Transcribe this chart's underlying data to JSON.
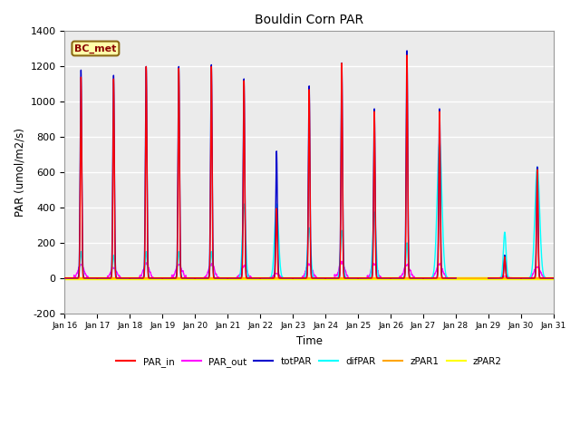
{
  "title": "Bouldin Corn PAR",
  "ylabel": "PAR (umol/m2/s)",
  "xlabel": "Time",
  "annotation": "BC_met",
  "ylim": [
    -200,
    1400
  ],
  "yticks": [
    -200,
    0,
    200,
    400,
    600,
    800,
    1000,
    1200,
    1400
  ],
  "series_colors": {
    "PAR_in": "#ff0000",
    "PAR_out": "#ff00ff",
    "totPAR": "#0000cc",
    "difPAR": "#00ffff",
    "zPAR1": "#ffa500",
    "zPAR2": "#ffff00"
  },
  "bg_color": "#ebebeb",
  "grid_color": "#ffffff",
  "days": [
    16,
    17,
    18,
    19,
    20,
    21,
    22,
    23,
    24,
    25,
    26,
    27,
    28,
    29,
    30,
    31
  ],
  "day_peaks_totPAR": [
    1180,
    1150,
    1200,
    1200,
    1210,
    1130,
    720,
    1090,
    1220,
    960,
    1290,
    960,
    0,
    130,
    630,
    0
  ],
  "day_peaks_PAR_in": [
    1140,
    1130,
    1200,
    1190,
    1200,
    1120,
    395,
    1070,
    1220,
    945,
    1265,
    945,
    0,
    120,
    615,
    0
  ],
  "day_peaks_difPAR": [
    150,
    130,
    150,
    150,
    150,
    420,
    420,
    285,
    270,
    375,
    200,
    770,
    0,
    260,
    630,
    0
  ],
  "day_peaks_PAR_out": [
    75,
    60,
    80,
    75,
    80,
    65,
    25,
    80,
    90,
    80,
    75,
    80,
    0,
    10,
    65,
    0
  ],
  "day_width_totPAR": [
    0.06,
    0.06,
    0.06,
    0.06,
    0.06,
    0.06,
    0.06,
    0.06,
    0.06,
    0.06,
    0.06,
    0.06,
    0.0,
    0.06,
    0.06,
    0.0
  ],
  "day_width_difPAR": [
    0.08,
    0.08,
    0.08,
    0.08,
    0.08,
    0.12,
    0.15,
    0.12,
    0.1,
    0.12,
    0.08,
    0.18,
    0.0,
    0.1,
    0.18,
    0.0
  ],
  "day_center": [
    0.5,
    0.5,
    0.5,
    0.5,
    0.5,
    0.5,
    0.5,
    0.5,
    0.5,
    0.5,
    0.5,
    0.5,
    0.5,
    0.5,
    0.5,
    0.5
  ]
}
